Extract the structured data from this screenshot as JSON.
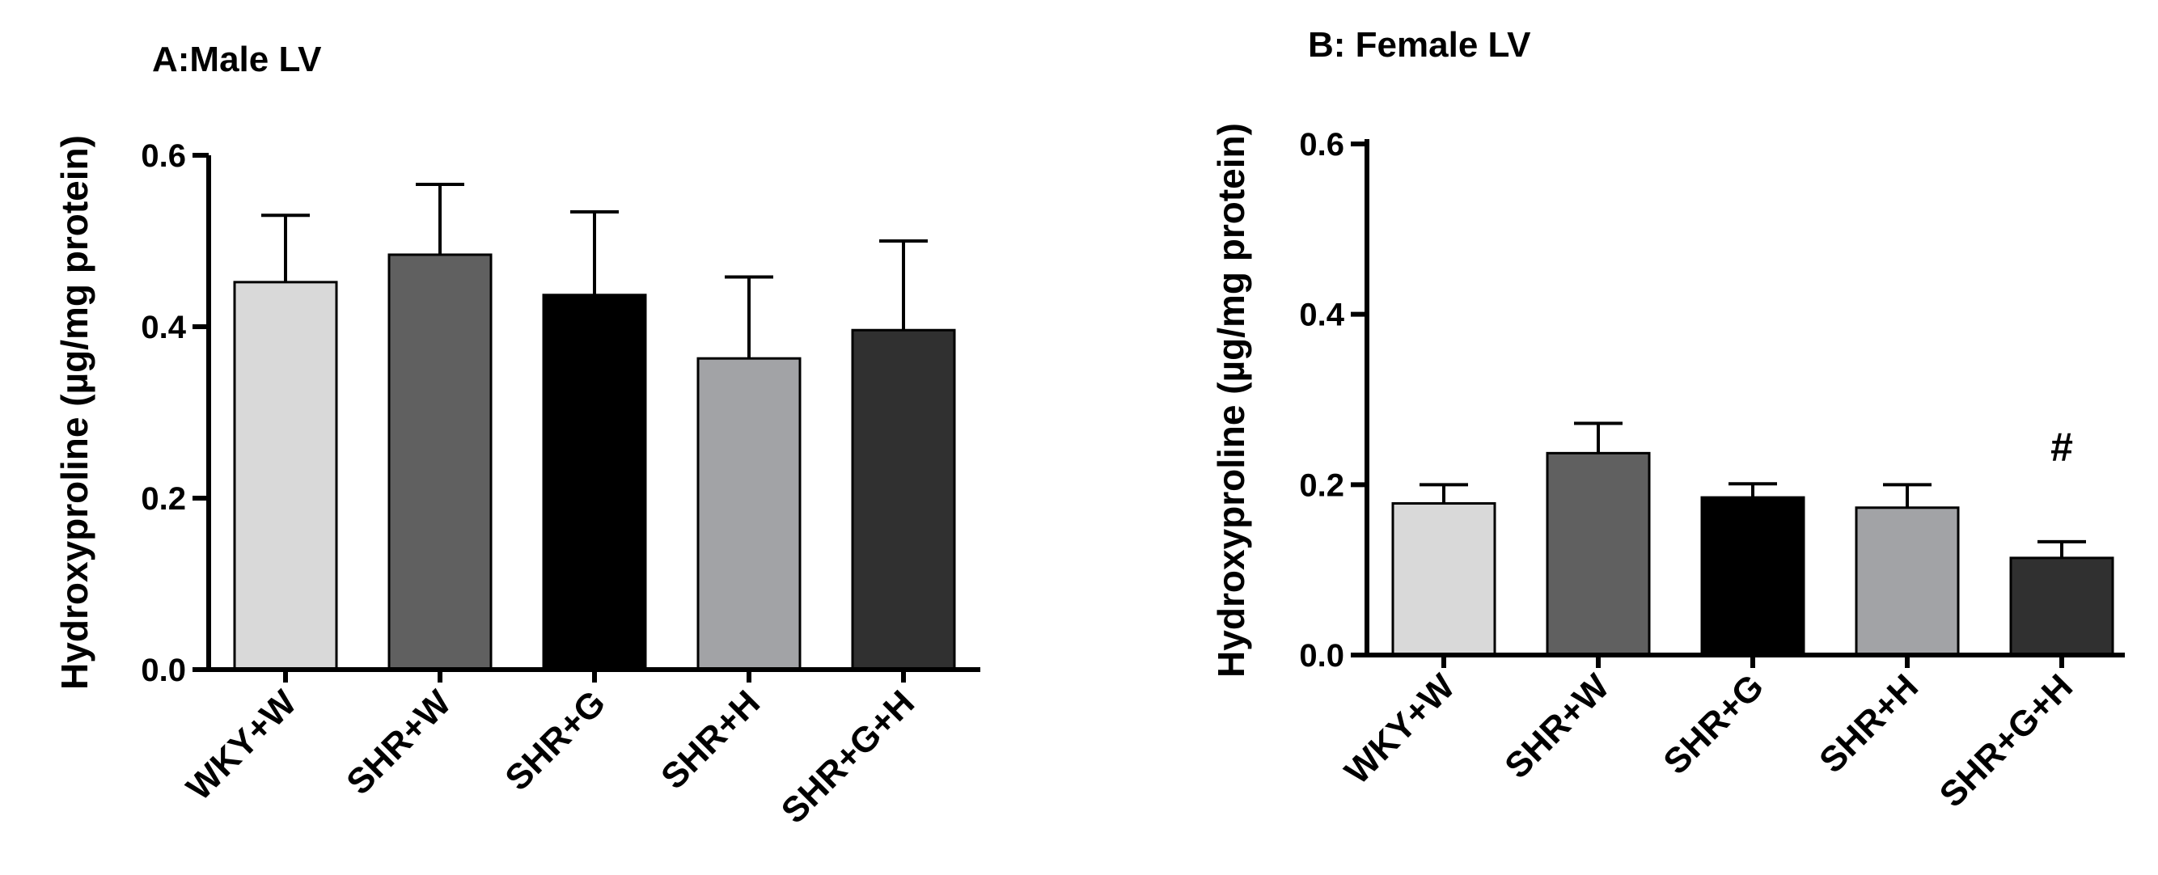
{
  "chart_data": [
    {
      "type": "bar",
      "title": "A:Male LV",
      "ylabel": "Hydroxyproline (µg/mg protein)",
      "xlabel": "",
      "ylim": [
        0,
        0.6
      ],
      "yticks": [
        "0.0",
        "0.2",
        "0.4",
        "0.6"
      ],
      "ytick_values": [
        0,
        0.2,
        0.4,
        0.6
      ],
      "categories": [
        "WKY+W",
        "SHR+W",
        "SHR+G",
        "SHR+H",
        "SHR+G+H"
      ],
      "values": [
        0.452,
        0.484,
        0.437,
        0.363,
        0.396
      ],
      "errors": [
        0.078,
        0.082,
        0.097,
        0.095,
        0.104
      ],
      "annotations": [
        "",
        "",
        "",
        "",
        ""
      ]
    },
    {
      "type": "bar",
      "title": "B: Female LV",
      "ylabel": "Hydroxyproline (µg/mg protein)",
      "xlabel": "",
      "ylim": [
        0,
        0.6
      ],
      "yticks": [
        "0.0",
        "0.2",
        "0.4",
        "0.6"
      ],
      "ytick_values": [
        0,
        0.2,
        0.4,
        0.6
      ],
      "categories": [
        "WKY+W",
        "SHR+W",
        "SHR+G",
        "SHR+H",
        "SHR+G+H"
      ],
      "values": [
        0.178,
        0.237,
        0.185,
        0.173,
        0.114
      ],
      "errors": [
        0.022,
        0.035,
        0.016,
        0.027,
        0.019
      ],
      "annotations": [
        "",
        "",
        "",
        "",
        "#"
      ]
    }
  ],
  "colors": {
    "WKY+W": "#d9d9d9",
    "SHR+W": "#606060",
    "SHR+G": "#000000",
    "SHR+H": "#a2a3a6",
    "SHR+G+H": "#303030",
    "axis": "#000000"
  }
}
